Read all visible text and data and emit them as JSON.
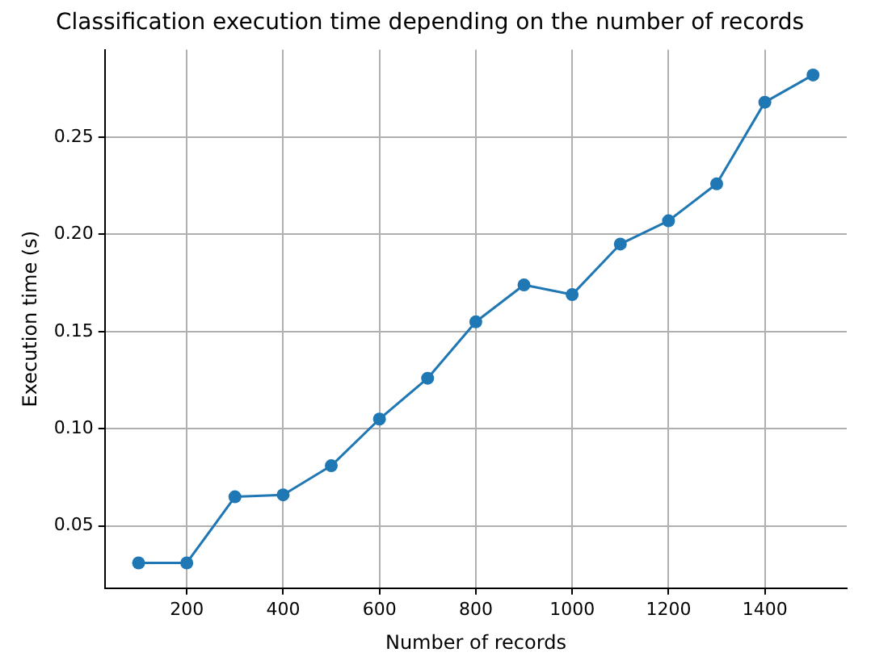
{
  "chart_data": {
    "type": "line",
    "title": "Classification execution time depending on the number of records",
    "xlabel": "Number of records",
    "ylabel": "Execution time (s)",
    "x": [
      100,
      200,
      300,
      400,
      500,
      600,
      700,
      800,
      900,
      1000,
      1100,
      1200,
      1300,
      1400,
      1500
    ],
    "series": [
      {
        "color": "#1f77b4",
        "values": [
          0.031,
          0.031,
          0.065,
          0.066,
          0.081,
          0.105,
          0.126,
          0.155,
          0.174,
          0.169,
          0.195,
          0.207,
          0.226,
          0.268,
          0.282
        ]
      }
    ],
    "xlim": [
      30,
      1570
    ],
    "ylim": [
      0.018,
      0.295
    ],
    "xticks": [
      200,
      400,
      600,
      800,
      1000,
      1200,
      1400
    ],
    "yticks": [
      {
        "value": 0.05,
        "label": "0.05"
      },
      {
        "value": 0.1,
        "label": "0.10"
      },
      {
        "value": 0.15,
        "label": "0.15"
      },
      {
        "value": 0.2,
        "label": "0.20"
      },
      {
        "value": 0.25,
        "label": "0.25"
      }
    ],
    "grid": true,
    "marker": "circle",
    "line_style": "solid",
    "legend": false
  }
}
